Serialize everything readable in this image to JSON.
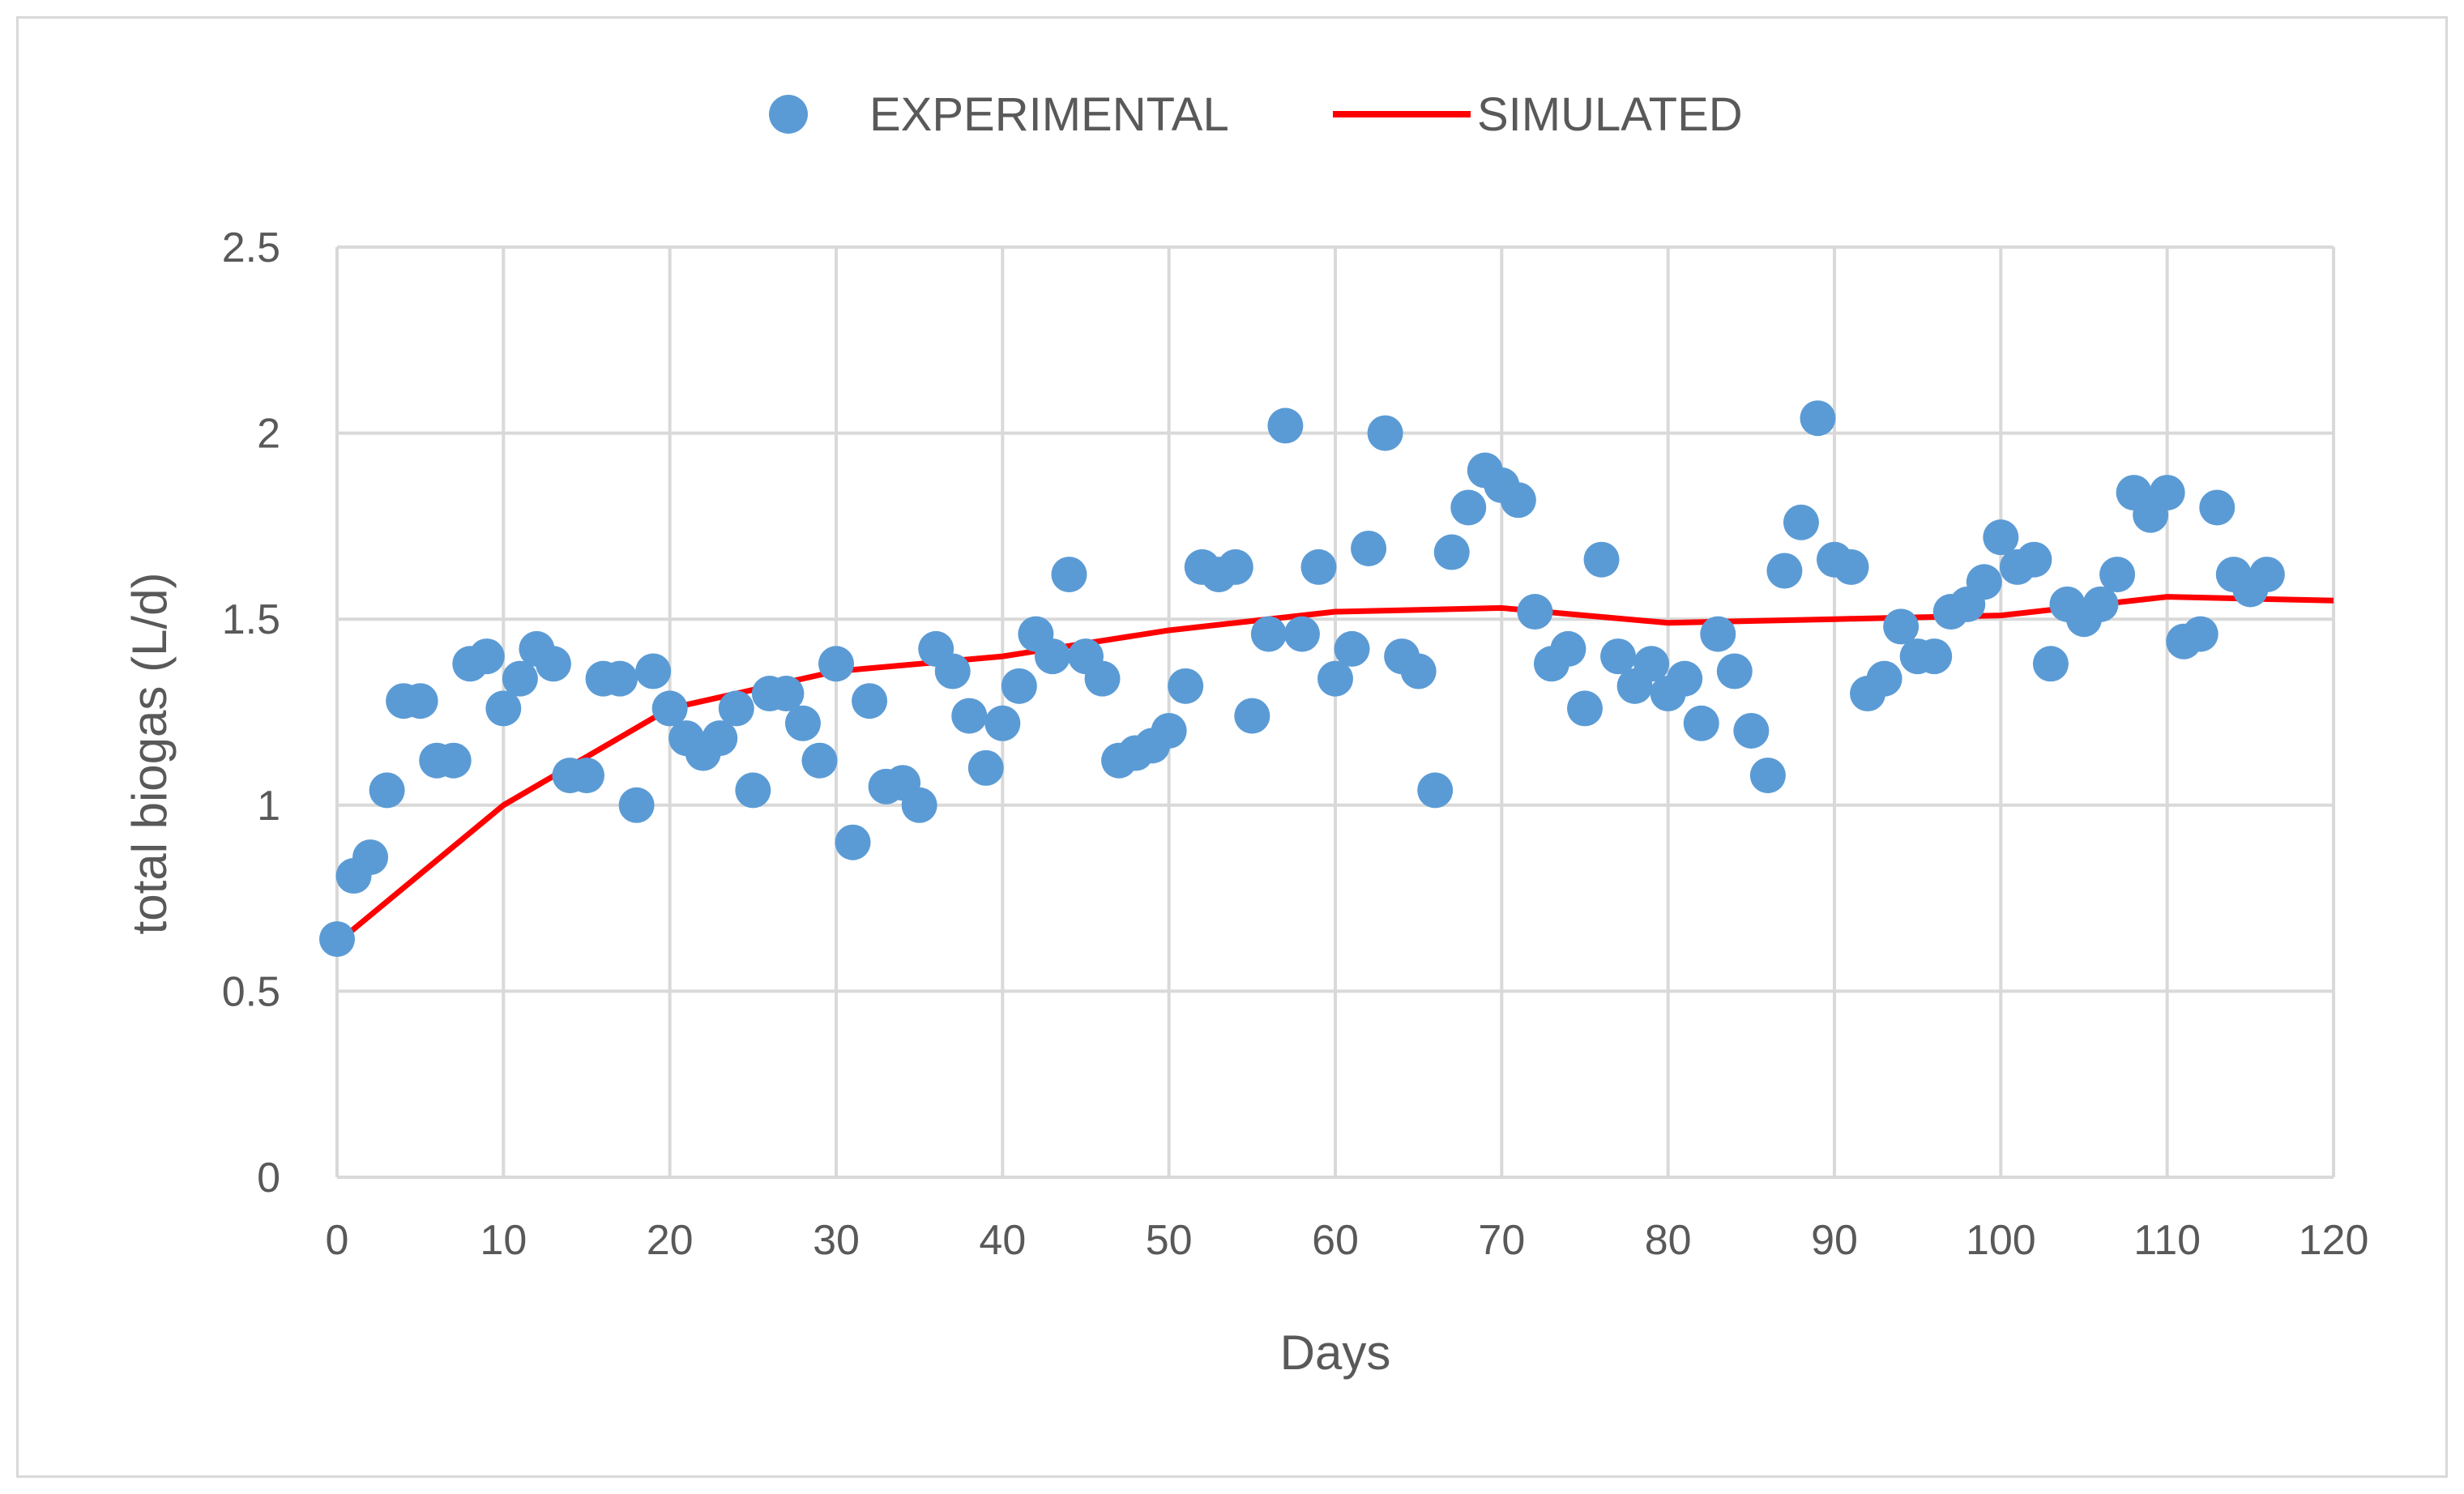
{
  "chart_data": {
    "type": "scatter",
    "title": "",
    "xlabel": "Days",
    "ylabel": "total biogas (L/d)",
    "xlim": [
      0,
      120
    ],
    "ylim": [
      0,
      2.5
    ],
    "x_ticks": [
      "0",
      "10",
      "20",
      "30",
      "40",
      "50",
      "60",
      "70",
      "80",
      "90",
      "100",
      "110",
      "120"
    ],
    "y_ticks": [
      "0",
      "0.5",
      "1",
      "1.5",
      "2",
      "2.5"
    ],
    "grid": true,
    "legend_position": "top",
    "colors": {
      "experimental": "#5b9bd5",
      "simulated": "#ff0000",
      "grid": "#d9d9d9",
      "text": "#595959"
    },
    "series": [
      {
        "name": "EXPERIMENTAL",
        "kind": "scatter",
        "x": [
          0,
          1,
          2,
          3,
          4,
          5,
          6,
          7,
          8,
          9,
          10,
          11,
          12,
          13,
          14,
          15,
          16,
          17,
          18,
          19,
          20,
          21,
          22,
          23,
          24,
          25,
          26,
          27,
          28,
          29,
          30,
          31,
          32,
          33,
          34,
          35,
          36,
          37,
          38,
          39,
          40,
          41,
          42,
          43,
          44,
          45,
          46,
          47,
          48,
          49,
          50,
          51,
          52,
          53,
          54,
          55,
          56,
          57,
          58,
          59,
          60,
          61,
          62,
          63,
          64,
          65,
          66,
          67,
          68,
          69,
          70,
          71,
          72,
          73,
          74,
          75,
          76,
          77,
          78,
          79,
          80,
          81,
          82,
          83,
          84,
          85,
          86,
          87,
          88,
          89,
          90,
          91,
          92,
          93,
          94,
          95,
          96,
          97,
          98,
          99,
          100,
          101,
          102,
          103,
          104,
          105,
          106,
          107,
          108,
          109,
          110,
          111,
          112,
          113,
          114,
          115,
          116
        ],
        "y": [
          0.64,
          0.81,
          0.86,
          1.04,
          1.28,
          1.28,
          1.12,
          1.12,
          1.38,
          1.4,
          1.26,
          1.34,
          1.42,
          1.38,
          1.08,
          1.08,
          1.34,
          1.34,
          1.0,
          1.36,
          1.26,
          1.18,
          1.14,
          1.18,
          1.26,
          1.04,
          1.3,
          1.3,
          1.22,
          1.12,
          1.38,
          0.9,
          1.28,
          1.05,
          1.06,
          1.0,
          1.42,
          1.36,
          1.24,
          1.1,
          1.22,
          1.32,
          1.46,
          1.4,
          1.62,
          1.4,
          1.34,
          1.12,
          1.14,
          1.16,
          1.2,
          1.32,
          1.64,
          1.62,
          1.64,
          1.24,
          1.46,
          2.02,
          1.46,
          1.64,
          1.34,
          1.42,
          1.69,
          2.0,
          1.4,
          1.36,
          1.04,
          1.68,
          1.8,
          1.9,
          1.86,
          1.82,
          1.52,
          1.38,
          1.42,
          1.26,
          1.66,
          1.4,
          1.32,
          1.38,
          1.3,
          1.34,
          1.22,
          1.46,
          1.36,
          1.2,
          1.08,
          1.63,
          1.76,
          2.04,
          1.66,
          1.64,
          1.3,
          1.34,
          1.48,
          1.4,
          1.4,
          1.52,
          1.54,
          1.6,
          1.72,
          1.64,
          1.66,
          1.38,
          1.54,
          1.5,
          1.54,
          1.62,
          1.84,
          1.78,
          1.84,
          1.44,
          1.46,
          1.8,
          1.62,
          1.58,
          1.62
        ]
      },
      {
        "name": "SIMULATED",
        "kind": "line",
        "x": [
          0,
          10,
          20,
          30,
          40,
          50,
          60,
          70,
          80,
          90,
          100,
          110,
          120
        ],
        "y": [
          0.63,
          1.0,
          1.26,
          1.36,
          1.4,
          1.47,
          1.52,
          1.53,
          1.49,
          1.5,
          1.51,
          1.56,
          1.55
        ]
      }
    ]
  }
}
